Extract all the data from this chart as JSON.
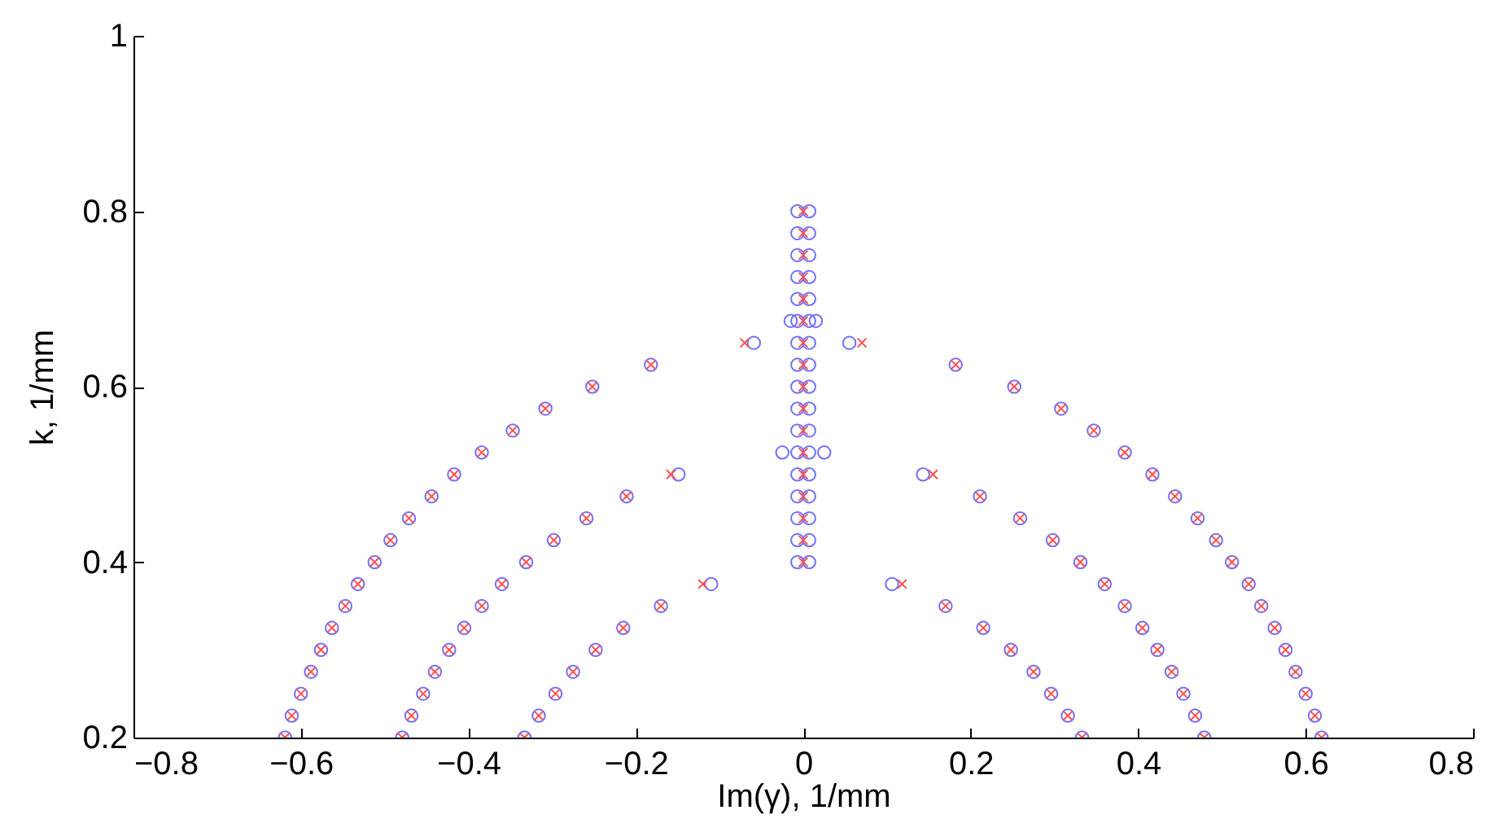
{
  "chart_data": {
    "type": "scatter",
    "xlabel": "Im(γ), 1/mm",
    "ylabel": "k, 1/mm",
    "xlim": [
      -0.8,
      0.8
    ],
    "ylim": [
      0.2,
      1
    ],
    "xticks": [
      -0.8,
      -0.6,
      -0.4,
      -0.2,
      0,
      0.2,
      0.4,
      0.6,
      0.8
    ],
    "yticks": [
      0.2,
      0.4,
      0.6,
      0.8,
      1
    ],
    "grid": false,
    "series": [
      {
        "color": "#7070ff",
        "marker": "circle",
        "x": [
          0.619,
          0.611,
          0.6,
          0.588,
          0.576,
          0.563,
          0.547,
          0.532,
          0.512,
          0.493,
          0.471,
          0.444,
          0.417,
          0.384,
          0.347,
          0.308,
          0.252,
          0.182,
          0.479,
          0.468,
          0.454,
          0.44,
          0.423,
          0.405,
          0.384,
          0.36,
          0.331,
          0.298,
          0.259,
          0.211,
          0.143,
          0.333,
          0.316,
          0.296,
          0.275,
          0.248,
          0.215,
          0.17,
          0.106,
          0.055,
          -0.619,
          -0.611,
          -0.6,
          -0.588,
          -0.576,
          -0.563,
          -0.547,
          -0.532,
          -0.512,
          -0.493,
          -0.471,
          -0.444,
          -0.417,
          -0.384,
          -0.347,
          -0.308,
          -0.252,
          -0.182,
          -0.479,
          -0.468,
          -0.454,
          -0.44,
          -0.423,
          -0.405,
          -0.384,
          -0.36,
          -0.331,
          -0.298,
          -0.259,
          -0.211,
          -0.149,
          -0.333,
          -0.316,
          -0.296,
          -0.275,
          -0.248,
          -0.215,
          -0.17,
          -0.11,
          -0.059,
          -0.007,
          0.007,
          -0.007,
          0.007,
          -0.007,
          0.007,
          -0.007,
          0.007,
          -0.007,
          0.007,
          -0.025,
          -0.007,
          0.007,
          0.025,
          -0.007,
          0.007,
          -0.007,
          0.007,
          -0.007,
          0.007,
          -0.007,
          0.007,
          -0.007,
          0.007,
          -0.015,
          -0.007,
          0.007,
          0.015,
          -0.007,
          0.007,
          -0.007,
          0.007,
          -0.007,
          0.007,
          -0.007,
          0.007,
          -0.007,
          0.007
        ],
        "values": [
          0.2,
          0.225,
          0.25,
          0.275,
          0.3,
          0.325,
          0.35,
          0.375,
          0.4,
          0.425,
          0.45,
          0.475,
          0.5,
          0.525,
          0.55,
          0.575,
          0.6,
          0.625,
          0.2,
          0.225,
          0.25,
          0.275,
          0.3,
          0.325,
          0.35,
          0.375,
          0.4,
          0.425,
          0.45,
          0.475,
          0.5,
          0.2,
          0.225,
          0.25,
          0.275,
          0.3,
          0.325,
          0.35,
          0.375,
          0.65,
          0.2,
          0.225,
          0.25,
          0.275,
          0.3,
          0.325,
          0.35,
          0.375,
          0.4,
          0.425,
          0.45,
          0.475,
          0.5,
          0.525,
          0.55,
          0.575,
          0.6,
          0.625,
          0.2,
          0.225,
          0.25,
          0.275,
          0.3,
          0.325,
          0.35,
          0.375,
          0.4,
          0.425,
          0.45,
          0.475,
          0.5,
          0.2,
          0.225,
          0.25,
          0.275,
          0.3,
          0.325,
          0.35,
          0.375,
          0.65,
          0.4,
          0.4,
          0.425,
          0.425,
          0.45,
          0.45,
          0.475,
          0.475,
          0.5,
          0.5,
          0.525,
          0.525,
          0.525,
          0.525,
          0.55,
          0.55,
          0.575,
          0.575,
          0.6,
          0.6,
          0.625,
          0.625,
          0.65,
          0.65,
          0.675,
          0.675,
          0.675,
          0.675,
          0.7,
          0.7,
          0.725,
          0.725,
          0.75,
          0.75,
          0.775,
          0.775,
          0.8,
          0.8
        ]
      },
      {
        "color": "#ff5050",
        "marker": "cross",
        "x": [
          0.619,
          0.611,
          0.6,
          0.588,
          0.576,
          0.563,
          0.547,
          0.532,
          0.512,
          0.493,
          0.471,
          0.444,
          0.417,
          0.384,
          0.347,
          0.308,
          0.252,
          0.182,
          0.479,
          0.468,
          0.454,
          0.44,
          0.423,
          0.405,
          0.384,
          0.36,
          0.331,
          0.298,
          0.259,
          0.211,
          0.155,
          0.333,
          0.316,
          0.296,
          0.275,
          0.248,
          0.215,
          0.17,
          0.118,
          0.07,
          -0.619,
          -0.611,
          -0.6,
          -0.588,
          -0.576,
          -0.563,
          -0.547,
          -0.532,
          -0.512,
          -0.493,
          -0.471,
          -0.444,
          -0.417,
          -0.384,
          -0.347,
          -0.308,
          -0.252,
          -0.182,
          -0.479,
          -0.468,
          -0.454,
          -0.44,
          -0.423,
          -0.405,
          -0.384,
          -0.36,
          -0.331,
          -0.298,
          -0.259,
          -0.211,
          -0.158,
          -0.333,
          -0.316,
          -0.296,
          -0.275,
          -0.248,
          -0.215,
          -0.17,
          -0.12,
          -0.07,
          0,
          0,
          0,
          0,
          0,
          0,
          0,
          0,
          0,
          0,
          0,
          0,
          0,
          0,
          0,
          0,
          0
        ],
        "values": [
          0.2,
          0.225,
          0.25,
          0.275,
          0.3,
          0.325,
          0.35,
          0.375,
          0.4,
          0.425,
          0.45,
          0.475,
          0.5,
          0.525,
          0.55,
          0.575,
          0.6,
          0.625,
          0.2,
          0.225,
          0.25,
          0.275,
          0.3,
          0.325,
          0.35,
          0.375,
          0.4,
          0.425,
          0.45,
          0.475,
          0.5,
          0.2,
          0.225,
          0.25,
          0.275,
          0.3,
          0.325,
          0.35,
          0.375,
          0.65,
          0.2,
          0.225,
          0.25,
          0.275,
          0.3,
          0.325,
          0.35,
          0.375,
          0.4,
          0.425,
          0.45,
          0.475,
          0.5,
          0.525,
          0.55,
          0.575,
          0.6,
          0.625,
          0.2,
          0.225,
          0.25,
          0.275,
          0.3,
          0.325,
          0.35,
          0.375,
          0.4,
          0.425,
          0.45,
          0.475,
          0.5,
          0.2,
          0.225,
          0.25,
          0.275,
          0.3,
          0.325,
          0.35,
          0.375,
          0.65,
          0.4,
          0.425,
          0.45,
          0.475,
          0.5,
          0.525,
          0.55,
          0.575,
          0.6,
          0.625,
          0.65,
          0.675,
          0.7,
          0.725,
          0.75,
          0.775,
          0.8
        ]
      }
    ]
  }
}
